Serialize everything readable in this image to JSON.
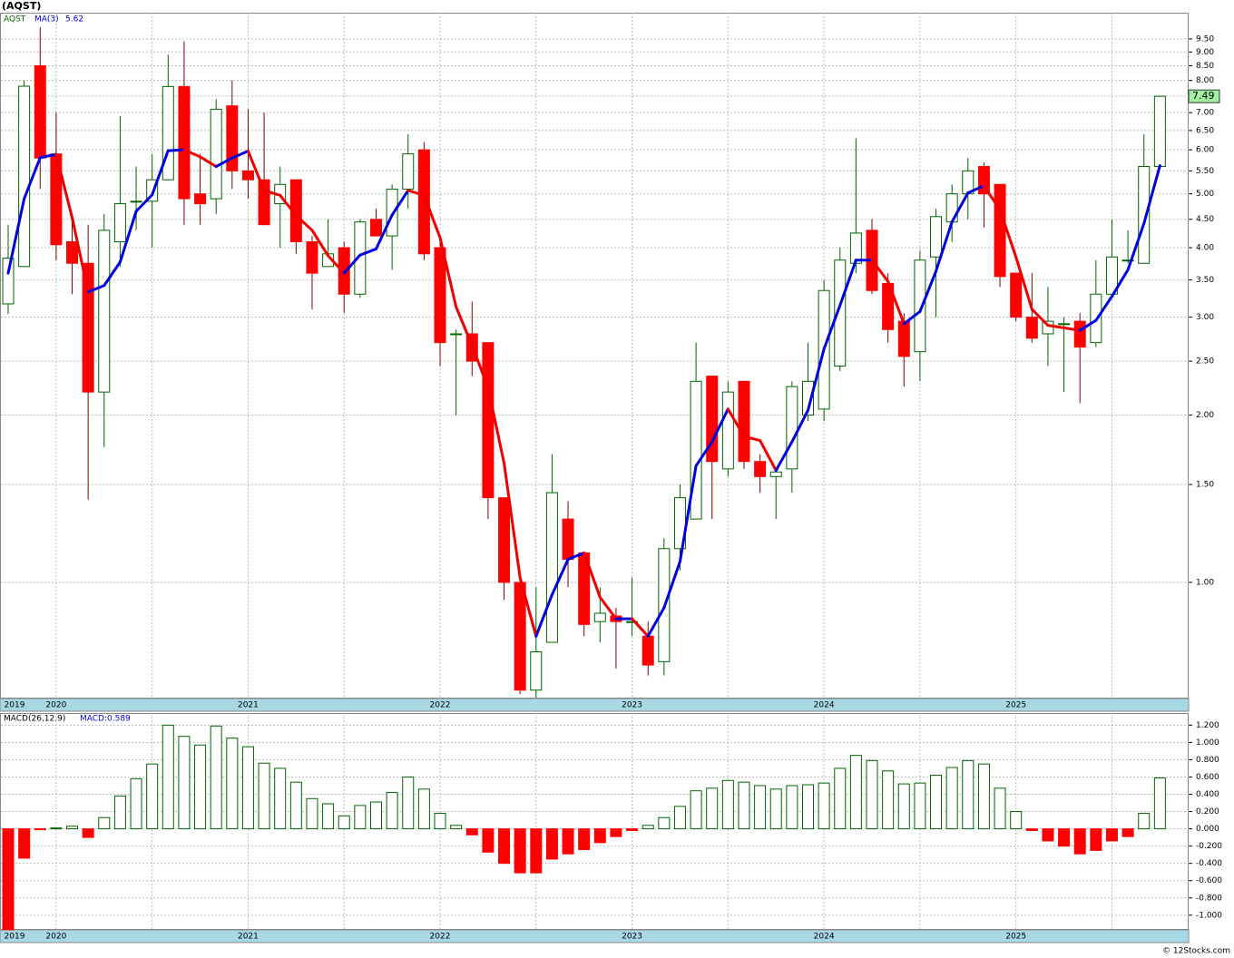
{
  "chart_data": [
    {
      "type": "candlestick",
      "title": "(AQST)",
      "categories": [
        "2019",
        null,
        null,
        "2020",
        null,
        null,
        null,
        null,
        null,
        null,
        null,
        null,
        null,
        null,
        null,
        "2021",
        null,
        null,
        null,
        null,
        null,
        null,
        null,
        null,
        null,
        null,
        null,
        "2022",
        null,
        null,
        null,
        null,
        null,
        null,
        null,
        null,
        null,
        null,
        null,
        "2023",
        null,
        null,
        null,
        null,
        null,
        null,
        null,
        null,
        null,
        null,
        null,
        "2024",
        null,
        null,
        null,
        null,
        null,
        null,
        null,
        null,
        null,
        null,
        null,
        "2025",
        null,
        null,
        null,
        null,
        null,
        null,
        null,
        null,
        null
      ],
      "series": [
        {
          "name": "AQST",
          "up_color": "#ffffff",
          "up_edge": "#006400",
          "down_color": "#ff0000",
          "down_edge": "#800000",
          "open": [
            3.17,
            3.7,
            8.5,
            5.9,
            4.1,
            3.75,
            2.2,
            4.1,
            4.85,
            4.85,
            5.3,
            7.8,
            5.0,
            4.9,
            7.2,
            5.5,
            5.3,
            4.8,
            5.3,
            4.1,
            3.7,
            4.0,
            3.3,
            4.5,
            4.2,
            5.1,
            6.0,
            4.0,
            2.8,
            2.8,
            2.7,
            1.42,
            1.0,
            0.64,
            0.78,
            1.3,
            1.13,
            0.85,
            0.87,
            0.85,
            0.8,
            0.72,
            1.15,
            1.3,
            2.35,
            1.6,
            2.3,
            1.65,
            1.55,
            1.6,
            2.0,
            2.05,
            2.45,
            3.75,
            4.3,
            3.45,
            2.95,
            2.6,
            3.85,
            4.45,
            5.0,
            5.6,
            5.2,
            3.6,
            3.0,
            2.8,
            2.92,
            2.95,
            2.7,
            3.3,
            3.8,
            3.75,
            5.6
          ],
          "high": [
            4.4,
            8.0,
            9.97,
            7.0,
            4.6,
            4.4,
            4.6,
            6.9,
            5.6,
            5.9,
            8.9,
            9.4,
            5.9,
            7.4,
            8.0,
            7.1,
            7.0,
            5.6,
            5.3,
            4.2,
            4.5,
            4.1,
            4.5,
            4.7,
            5.2,
            6.4,
            6.2,
            4.1,
            2.85,
            3.2,
            2.7,
            1.42,
            1.0,
            0.98,
            1.7,
            1.4,
            1.13,
            0.98,
            0.9,
            1.02,
            0.85,
            1.2,
            1.5,
            2.7,
            2.35,
            2.3,
            2.3,
            1.7,
            1.6,
            2.3,
            2.7,
            3.5,
            4.0,
            6.3,
            4.5,
            3.6,
            3.05,
            3.95,
            4.7,
            5.2,
            5.8,
            5.7,
            5.2,
            3.6,
            3.6,
            3.4,
            3.0,
            3.05,
            3.8,
            4.5,
            4.3,
            6.4,
            7.5
          ],
          "low": [
            3.04,
            3.7,
            5.1,
            3.8,
            3.3,
            1.41,
            1.75,
            3.7,
            4.3,
            4.0,
            5.3,
            4.4,
            4.4,
            4.6,
            5.1,
            4.9,
            4.4,
            4.0,
            3.9,
            3.1,
            3.7,
            3.05,
            3.25,
            4.2,
            3.65,
            4.7,
            3.8,
            2.45,
            2.0,
            2.35,
            1.3,
            0.93,
            0.63,
            0.62,
            0.78,
            0.98,
            0.8,
            0.78,
            0.7,
            0.8,
            0.68,
            0.68,
            1.05,
            1.3,
            1.3,
            1.55,
            1.6,
            1.45,
            1.3,
            1.45,
            1.95,
            1.95,
            2.4,
            3.6,
            3.3,
            2.7,
            2.25,
            2.3,
            3.0,
            4.1,
            4.5,
            4.35,
            3.4,
            2.95,
            2.7,
            2.45,
            2.2,
            2.1,
            2.65,
            3.3,
            3.75,
            3.75,
            5.6
          ],
          "close": [
            3.83,
            7.81,
            5.8,
            4.05,
            3.75,
            2.2,
            4.3,
            4.8,
            4.85,
            5.3,
            7.8,
            4.9,
            4.8,
            7.1,
            5.5,
            5.3,
            4.4,
            5.2,
            4.1,
            3.6,
            3.9,
            3.3,
            4.45,
            4.2,
            5.1,
            5.9,
            3.9,
            2.7,
            2.8,
            2.5,
            1.42,
            1.0,
            0.64,
            0.75,
            1.45,
            1.1,
            0.84,
            0.88,
            0.85,
            0.85,
            0.71,
            1.15,
            1.42,
            2.3,
            1.65,
            2.2,
            1.65,
            1.55,
            1.58,
            2.25,
            2.3,
            3.35,
            3.8,
            4.25,
            3.35,
            2.85,
            2.55,
            3.8,
            4.55,
            5.0,
            5.5,
            5.0,
            3.55,
            3.0,
            2.75,
            2.95,
            2.92,
            2.65,
            3.3,
            3.85,
            3.8,
            5.6,
            7.49
          ]
        },
        {
          "name": "MA(3)",
          "up_color": "#0000e0",
          "down_color": "#ee0000",
          "values": [
            3.6,
            4.9,
            5.81,
            5.89,
            4.53,
            3.33,
            3.42,
            3.77,
            4.65,
            4.98,
            5.98,
            6.0,
            5.83,
            5.6,
            5.8,
            5.97,
            5.07,
            4.97,
            4.57,
            4.3,
            3.87,
            3.6,
            3.88,
            3.98,
            4.58,
            5.07,
            4.97,
            4.17,
            3.13,
            2.67,
            2.24,
            1.64,
            1.02,
            0.8,
            0.95,
            1.1,
            1.13,
            0.94,
            0.86,
            0.86,
            0.8,
            0.9,
            1.09,
            1.62,
            1.79,
            2.05,
            1.83,
            1.8,
            1.59,
            1.79,
            2.04,
            2.63,
            3.15,
            3.8,
            3.8,
            3.48,
            2.92,
            3.07,
            3.63,
            4.45,
            5.02,
            5.17,
            4.68,
            3.85,
            3.1,
            2.9,
            2.87,
            2.84,
            2.96,
            3.27,
            3.65,
            4.42,
            5.62
          ]
        }
      ],
      "log_scale": true,
      "grid": true,
      "ylim": [
        0.618,
        10.59
      ],
      "last_price_color": "#a0f0a0",
      "yticks": [
        {
          "value": 9.5,
          "label": "9.50"
        },
        {
          "value": 9,
          "label": "9.00"
        },
        {
          "value": 8.5,
          "label": "8.50"
        },
        {
          "value": 8,
          "label": "8.00"
        },
        {
          "value": 7.5,
          "label": "7.50"
        },
        {
          "value": 7,
          "label": "7.00"
        },
        {
          "value": 6.5,
          "label": "6.50"
        },
        {
          "value": 6,
          "label": "6.00"
        },
        {
          "value": 5.5,
          "label": "5.50"
        },
        {
          "value": 5,
          "label": "5.00"
        },
        {
          "value": 4.5,
          "label": "4.50"
        },
        {
          "value": 4,
          "label": "4.00"
        },
        {
          "value": 3.5,
          "label": "3.50"
        },
        {
          "value": 3,
          "label": "3.00"
        },
        {
          "value": 2.5,
          "label": "2.50"
        },
        {
          "value": 2,
          "label": "2.00"
        },
        {
          "value": 1.5,
          "label": "1.50"
        },
        {
          "value": 1,
          "label": "1.00"
        }
      ]
    },
    {
      "type": "bar",
      "title": "MACD(26,12,9)",
      "value_label": "MACD:0.589",
      "up_color": "#ffffff",
      "up_edge": "#006400",
      "down_color": "#ff0000",
      "down_edge": "#800000",
      "categories": [
        "2019",
        null,
        null,
        "2020",
        null,
        null,
        null,
        null,
        null,
        null,
        null,
        null,
        null,
        null,
        null,
        "2021",
        null,
        null,
        null,
        null,
        null,
        null,
        null,
        null,
        null,
        null,
        null,
        "2022",
        null,
        null,
        null,
        null,
        null,
        null,
        null,
        null,
        null,
        null,
        null,
        "2023",
        null,
        null,
        null,
        null,
        null,
        null,
        null,
        null,
        null,
        null,
        null,
        "2024",
        null,
        null,
        null,
        null,
        null,
        null,
        null,
        null,
        null,
        null,
        null,
        "2025",
        null,
        null,
        null,
        null,
        null,
        null,
        null,
        null,
        null
      ],
      "values": [
        -1.17,
        -0.34,
        -0.01,
        0.01,
        0.03,
        -0.1,
        0.13,
        0.38,
        0.58,
        0.75,
        1.2,
        1.07,
        0.97,
        1.19,
        1.05,
        0.95,
        0.76,
        0.7,
        0.54,
        0.35,
        0.29,
        0.15,
        0.27,
        0.31,
        0.42,
        0.6,
        0.46,
        0.18,
        0.04,
        -0.07,
        -0.27,
        -0.4,
        -0.51,
        -0.51,
        -0.35,
        -0.29,
        -0.24,
        -0.16,
        -0.09,
        -0.02,
        0.04,
        0.13,
        0.26,
        0.44,
        0.47,
        0.56,
        0.54,
        0.5,
        0.46,
        0.5,
        0.51,
        0.53,
        0.7,
        0.85,
        0.79,
        0.67,
        0.52,
        0.53,
        0.62,
        0.71,
        0.79,
        0.75,
        0.47,
        0.2,
        -0.02,
        -0.14,
        -0.2,
        -0.29,
        -0.25,
        -0.14,
        -0.09,
        0.18,
        0.589
      ],
      "grid": true,
      "ylim": [
        -1.17,
        1.34
      ],
      "yticks": [
        {
          "value": 1.2,
          "label": "1.200"
        },
        {
          "value": 1,
          "label": "1.000"
        },
        {
          "value": 0.8,
          "label": "0.800"
        },
        {
          "value": 0.6,
          "label": "0.600"
        },
        {
          "value": 0.4,
          "label": "0.400"
        },
        {
          "value": 0.2,
          "label": "0.200"
        },
        {
          "value": 0,
          "label": "0.000"
        },
        {
          "value": -0.2,
          "label": "-0.200"
        },
        {
          "value": -0.4,
          "label": "-0.400"
        },
        {
          "value": -0.6,
          "label": "-0.600"
        },
        {
          "value": -0.8,
          "label": "-0.800"
        },
        {
          "value": -1,
          "label": "-1.000"
        }
      ]
    }
  ],
  "footer": "© 12Stocks.com"
}
